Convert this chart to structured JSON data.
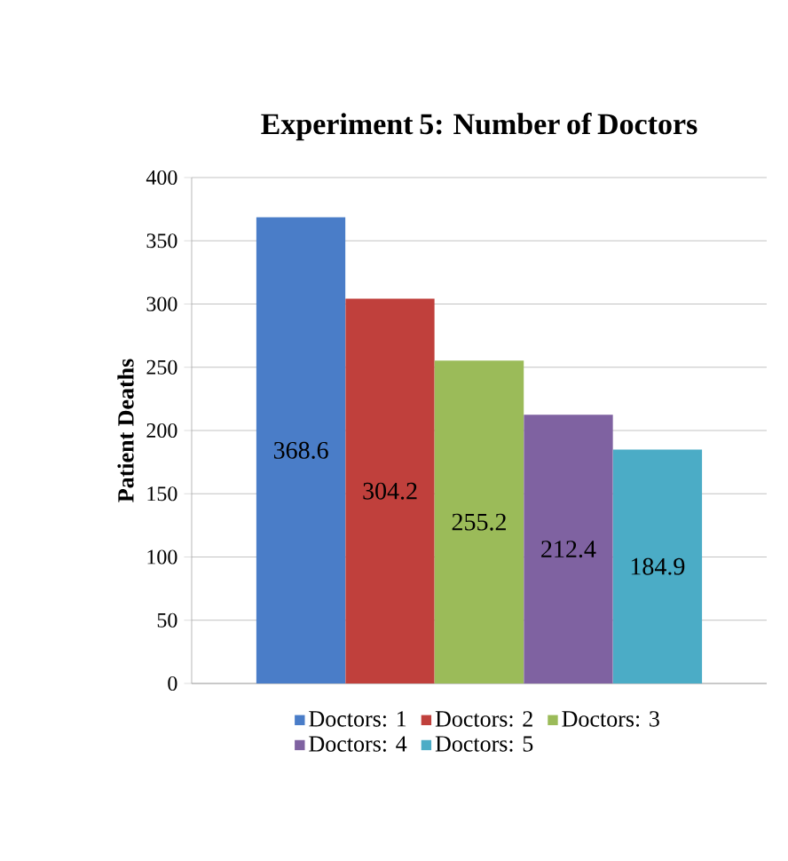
{
  "chart_data": {
    "type": "bar",
    "title": "Experiment 5: Number of Doctors",
    "ylabel": "Patient Deaths",
    "categories": [
      null
    ],
    "series": [
      {
        "name": "Doctors: 1",
        "color": "#4a7dc8",
        "values": [
          368.6
        ]
      },
      {
        "name": "Doctors: 2",
        "color": "#c0403c",
        "values": [
          304.2
        ]
      },
      {
        "name": "Doctors: 3",
        "color": "#9bbb59",
        "values": [
          255.2
        ]
      },
      {
        "name": "Doctors: 4",
        "color": "#7f62a1",
        "values": [
          212.4
        ]
      },
      {
        "name": "Doctors: 5",
        "color": "#4bacc6",
        "values": [
          184.9
        ]
      }
    ],
    "ylim": [
      0,
      400
    ],
    "yticks": [
      0,
      50,
      100,
      150,
      200,
      250,
      300,
      350,
      400
    ],
    "grid": "y",
    "legend": "bottom",
    "data_labels": true
  }
}
